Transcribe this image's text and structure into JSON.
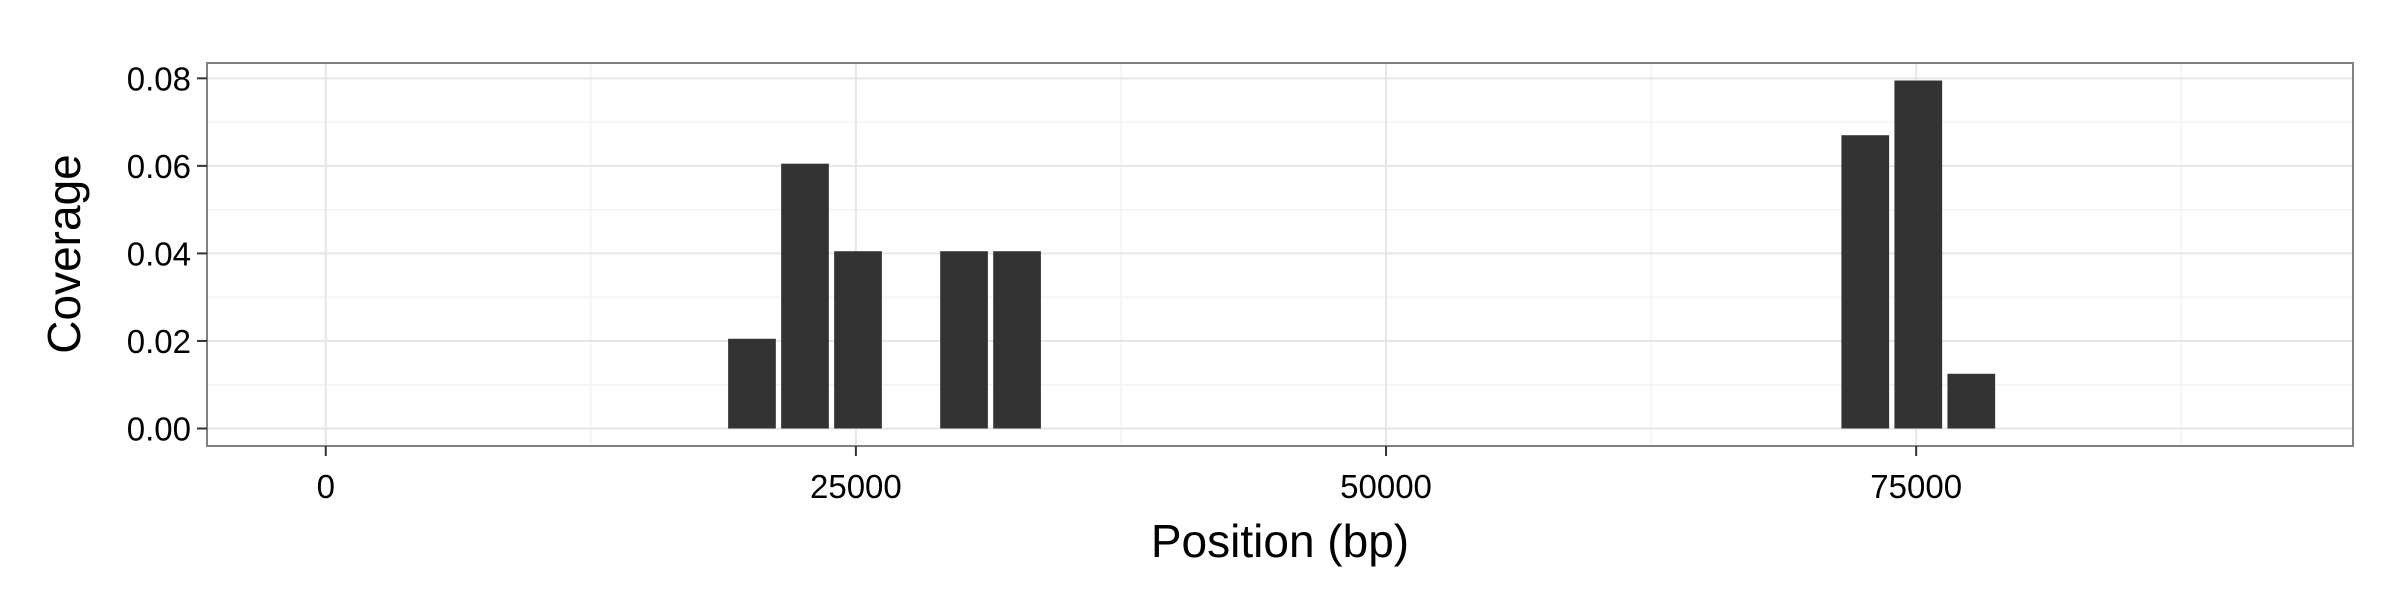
{
  "chart_data": {
    "type": "bar",
    "xlabel": "Position (bp)",
    "ylabel": "Coverage",
    "xlim": [
      -5600,
      95600
    ],
    "ylim": [
      -0.004,
      0.0835
    ],
    "x_ticks": [
      0,
      25000,
      50000,
      75000
    ],
    "x_tick_labels": [
      "0",
      "25000",
      "50000",
      "75000"
    ],
    "y_ticks": [
      0,
      0.02,
      0.04,
      0.06,
      0.08
    ],
    "y_tick_labels": [
      "0.00",
      "0.02",
      "0.04",
      "0.06",
      "0.08"
    ],
    "bar_width": 2250,
    "bars": [
      {
        "x": 20100,
        "value": 0.0205
      },
      {
        "x": 22600,
        "value": 0.0605
      },
      {
        "x": 25100,
        "value": 0.0405
      },
      {
        "x": 30100,
        "value": 0.0405
      },
      {
        "x": 32600,
        "value": 0.0405
      },
      {
        "x": 72600,
        "value": 0.067
      },
      {
        "x": 75100,
        "value": 0.0795
      },
      {
        "x": 77600,
        "value": 0.0125
      }
    ],
    "grid": true,
    "legend": "none",
    "colors": {
      "bar": "#333333",
      "panel_border": "#808080",
      "grid_major": "#e6e6e6",
      "grid_minor": "#f3f3f3",
      "background": "#ffffff"
    }
  }
}
